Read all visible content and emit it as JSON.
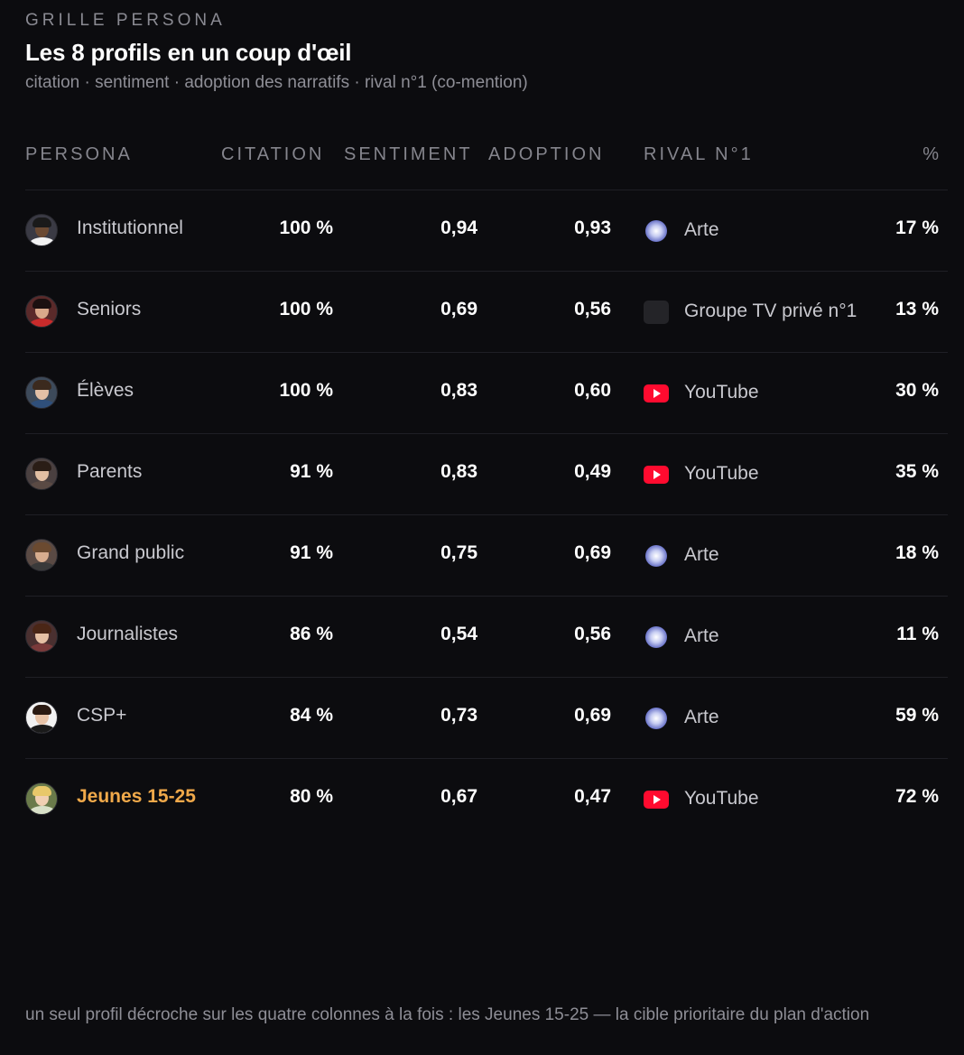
{
  "header": {
    "eyebrow": "GRILLE PERSONA",
    "title": "Les 8 profils en un coup d'œil",
    "subtitle": "citation · sentiment · adoption des narratifs · rival n°1 (co-mention)"
  },
  "table": {
    "columns": {
      "persona": "PERSONA",
      "citation": "CITATION",
      "sentiment": "SENTIMENT",
      "adoption": "ADOPTION",
      "rival": "RIVAL N°1",
      "percent": "%"
    },
    "rows": [
      {
        "persona": "Institutionnel",
        "citation": "100 %",
        "sentiment": "0,94",
        "adoption": "0,93",
        "rival": "Arte",
        "rival_icon": "arte-globe-icon",
        "share": "17 %",
        "highlight": false
      },
      {
        "persona": "Seniors",
        "citation": "100 %",
        "sentiment": "0,69",
        "adoption": "0,56",
        "rival": "Groupe TV privé n°1",
        "rival_icon": "tv-placeholder-icon",
        "share": "13 %",
        "highlight": false
      },
      {
        "persona": "Élèves",
        "citation": "100 %",
        "sentiment": "0,83",
        "adoption": "0,60",
        "rival": "YouTube",
        "rival_icon": "youtube-icon",
        "share": "30 %",
        "highlight": false
      },
      {
        "persona": "Parents",
        "citation": "91 %",
        "sentiment": "0,83",
        "adoption": "0,49",
        "rival": "YouTube",
        "rival_icon": "youtube-icon",
        "share": "35 %",
        "highlight": false
      },
      {
        "persona": "Grand public",
        "citation": "91 %",
        "sentiment": "0,75",
        "adoption": "0,69",
        "rival": "Arte",
        "rival_icon": "arte-globe-icon",
        "share": "18 %",
        "highlight": false
      },
      {
        "persona": "Journalistes",
        "citation": "86 %",
        "sentiment": "0,54",
        "adoption": "0,56",
        "rival": "Arte",
        "rival_icon": "arte-globe-icon",
        "share": "11 %",
        "highlight": false
      },
      {
        "persona": "CSP+",
        "citation": "84 %",
        "sentiment": "0,73",
        "adoption": "0,69",
        "rival": "Arte",
        "rival_icon": "arte-globe-icon",
        "share": "59 %",
        "highlight": false
      },
      {
        "persona": "Jeunes 15-25",
        "citation": "80 %",
        "sentiment": "0,67",
        "adoption": "0,47",
        "rival": "YouTube",
        "rival_icon": "youtube-icon",
        "share": "72 %",
        "highlight": true
      }
    ]
  },
  "footer": {
    "note": "un seul profil décroche sur les quatre colonnes à la fois : les Jeunes 15-25 — la cible prioritaire du plan d'action"
  },
  "colors": {
    "background": "#0c0c0f",
    "highlight": "#f0a94a",
    "youtube": "#ff0b2f"
  }
}
